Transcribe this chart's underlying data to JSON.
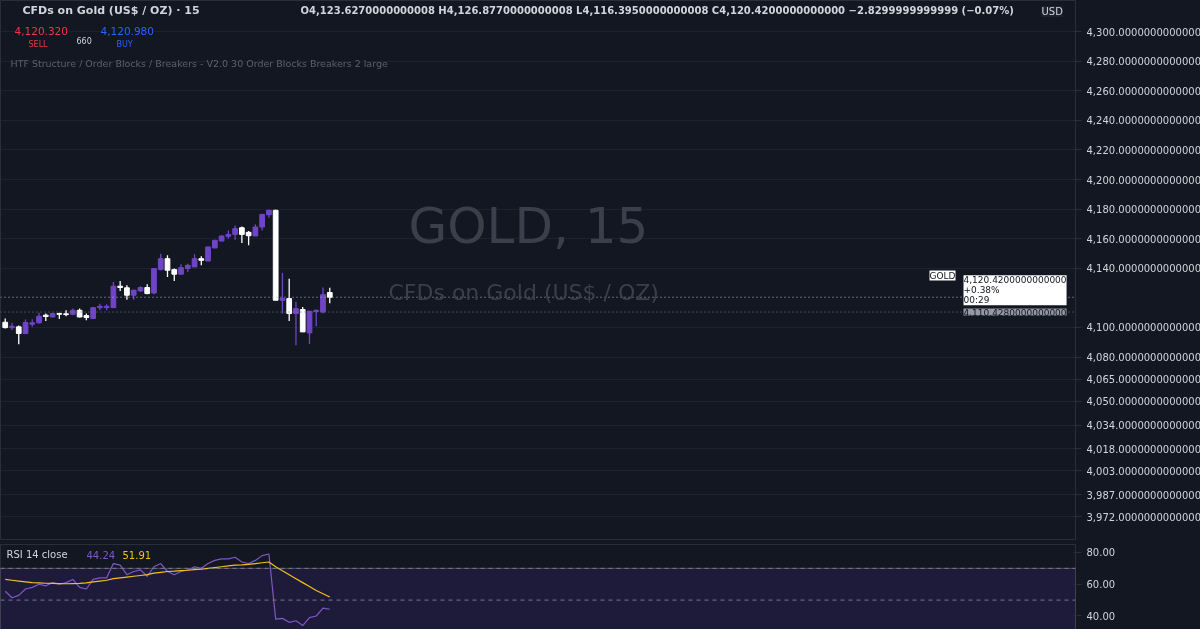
{
  "chart_data": [
    {
      "type": "candlestick",
      "title": "CFDs on Gold (US$ / OZ) · 15",
      "categories": [
        null,
        null,
        null,
        null,
        null,
        null,
        null,
        null,
        null,
        null,
        null,
        null,
        null,
        null,
        null,
        null,
        null,
        null,
        null,
        null,
        null,
        null,
        null,
        null,
        null,
        null,
        null,
        null,
        null,
        null,
        null,
        null,
        null,
        null,
        null,
        null,
        null,
        null,
        null,
        null,
        null,
        null,
        null,
        null,
        null,
        null,
        null,
        null,
        null,
        null,
        null,
        null,
        null,
        null,
        null,
        null,
        null,
        null,
        null,
        null,
        null,
        null,
        null,
        null,
        null,
        null,
        null,
        null,
        null,
        null,
        null,
        null,
        null,
        null,
        null,
        null,
        null,
        null,
        null,
        null,
        null,
        null,
        null,
        null,
        null,
        null,
        null,
        null,
        null,
        null,
        null,
        null,
        null,
        null,
        null,
        null,
        null,
        null,
        null,
        null,
        null,
        null,
        null,
        null,
        null,
        null,
        null,
        null,
        null,
        null,
        null,
        null,
        null,
        null,
        null,
        null,
        null,
        null,
        null,
        null,
        null,
        null,
        null,
        null,
        null,
        null,
        null,
        null,
        null,
        null,
        null,
        null,
        null,
        null,
        null,
        null,
        null,
        null,
        null,
        null,
        null,
        null,
        null,
        null,
        null,
        null,
        null,
        null,
        null,
        null,
        null,
        null,
        null,
        null,
        null,
        null,
        null,
        null,
        null
      ],
      "ohlc": [
        [
          4103.5,
          4106.0,
          4099.3,
          4099.9
        ],
        [
          4099.9,
          4103.1,
          4098.2,
          4100.8
        ],
        [
          4100.4,
          4101.3,
          4088.7,
          4095.9
        ],
        [
          4095.9,
          4105.3,
          4095.9,
          4103.3
        ],
        [
          4102.2,
          4105.6,
          4100.4,
          4103.1
        ],
        [
          4103.1,
          4109.9,
          4102.6,
          4107.6
        ],
        [
          4108.3,
          4109.4,
          4104.4,
          4107.4
        ],
        [
          4107.1,
          4109.9,
          4106.7,
          4109.4
        ],
        [
          4109.4,
          4109.9,
          4105.8,
          4108.9
        ],
        [
          4109.2,
          4111.6,
          4107.6,
          4108.7
        ],
        [
          4108.9,
          4112.8,
          4108.3,
          4111.6
        ],
        [
          4111.6,
          4112.8,
          4106.7,
          4107.1
        ],
        [
          4108.0,
          4109.4,
          4104.9,
          4106.7
        ],
        [
          4106.0,
          4113.9,
          4106.0,
          4113.4
        ],
        [
          4113.4,
          4116.1,
          4111.6,
          4114.3
        ],
        [
          4113.4,
          4115.7,
          4111.6,
          4114.3
        ],
        [
          4113.4,
          4130.8,
          4113.4,
          4127.9
        ],
        [
          4127.9,
          4131.4,
          4124.7,
          4127.0
        ],
        [
          4126.8,
          4128.5,
          4118.8,
          4121.8
        ],
        [
          4121.8,
          4125.6,
          4118.8,
          4125.2
        ],
        [
          4124.7,
          4127.9,
          4124.0,
          4127.0
        ],
        [
          4127.0,
          4129.2,
          4122.4,
          4122.9
        ],
        [
          4123.3,
          4139.8,
          4122.4,
          4139.8
        ],
        [
          4139.1,
          4149.9,
          4138.7,
          4146.5
        ],
        [
          4146.5,
          4148.8,
          4134.1,
          4138.7
        ],
        [
          4139.1,
          4139.8,
          4131.4,
          4136.0
        ],
        [
          4136.0,
          4142.7,
          4136.0,
          4140.4
        ],
        [
          4139.8,
          4143.1,
          4137.5,
          4142.0
        ],
        [
          4140.9,
          4149.5,
          4140.9,
          4146.5
        ],
        [
          4146.5,
          4148.1,
          4142.0,
          4145.4
        ],
        [
          4144.9,
          4154.8,
          4144.9,
          4154.4
        ],
        [
          4153.7,
          4159.3,
          4153.7,
          4158.9
        ],
        [
          4158.4,
          4162.3,
          4158.4,
          4161.8
        ],
        [
          4161.6,
          4165.6,
          4160.0,
          4162.9
        ],
        [
          4162.9,
          4169.0,
          4159.3,
          4166.8
        ],
        [
          4167.4,
          4168.3,
          4157.1,
          4162.9
        ],
        [
          4164.3,
          4165.2,
          4155.5,
          4162.0
        ],
        [
          4161.8,
          4169.7,
          4161.8,
          4167.9
        ],
        [
          4167.9,
          4176.9,
          4165.6,
          4176.4
        ],
        [
          4176.2,
          4179.6,
          4174.2,
          4179.2
        ],
        [
          4179.2,
          4179.6,
          4118.4,
          4118.4
        ],
        [
          4118.4,
          4136.9,
          4109.4,
          4119.5
        ],
        [
          4119.5,
          4133.0,
          4104.4,
          4109.4
        ],
        [
          4109.4,
          4117.3,
          4088.0,
          4112.8
        ],
        [
          4112.1,
          4113.9,
          4097.0,
          4097.0
        ],
        [
          4096.3,
          4111.0,
          4088.7,
          4111.0
        ],
        [
          4110.8,
          4112.1,
          4100.8,
          4111.6
        ],
        [
          4110.5,
          4127.0,
          4109.4,
          4122.2
        ],
        [
          4123.627,
          4126.877,
          4116.395,
          4120.42
        ],
        null,
        null,
        null,
        null,
        null,
        null,
        null,
        null,
        null,
        null,
        null,
        null,
        null,
        null,
        null,
        null,
        null,
        null,
        null,
        null,
        null,
        null,
        null,
        null,
        null,
        null,
        null,
        null,
        null,
        null,
        null,
        null,
        null,
        null,
        null,
        null,
        null,
        null,
        null,
        null,
        null,
        null,
        null,
        null,
        null,
        null,
        null,
        null,
        null,
        null,
        null,
        null,
        null,
        null,
        null,
        null,
        null,
        null,
        null,
        null,
        null,
        null,
        null,
        null,
        null,
        null,
        null,
        null,
        null,
        null,
        null,
        null,
        null,
        null,
        null,
        null,
        null,
        null,
        null,
        null,
        null,
        null,
        null,
        null,
        null,
        null,
        null,
        null,
        null,
        null,
        null,
        null,
        null,
        null,
        null,
        null,
        null,
        null,
        null,
        null,
        null,
        null,
        null,
        null,
        null,
        null,
        null,
        null,
        null,
        null
      ],
      "colors": [
        "#ffffff",
        "#6f45c6",
        "#ffffff",
        "#6f45c6",
        "#6f45c6",
        "#6f45c6",
        "#ffffff",
        "#6f45c6",
        "#ffffff",
        "#ffffff",
        "#6f45c6",
        "#ffffff",
        "#ffffff",
        "#6f45c6",
        "#6f45c6",
        "#6f45c6",
        "#6f45c6",
        "#ffffff",
        "#ffffff",
        "#6f45c6",
        "#6f45c6",
        "#ffffff",
        "#6f45c6",
        "#6f45c6",
        "#ffffff",
        "#ffffff",
        "#6f45c6",
        "#6f45c6",
        "#6f45c6",
        "#ffffff",
        "#6f45c6",
        "#6f45c6",
        "#6f45c6",
        "#6f45c6",
        "#6f45c6",
        "#ffffff",
        "#ffffff",
        "#6f45c6",
        "#6f45c6",
        "#6f45c6",
        "#ffffff",
        "#6f45c6",
        "#ffffff",
        "#6f45c6",
        "#ffffff",
        "#6f45c6",
        "#6f45c6",
        "#6f45c6",
        "#ffffff",
        null,
        null,
        null,
        null,
        null,
        null,
        null,
        null,
        null,
        null,
        null,
        null,
        null,
        null,
        null,
        null,
        null,
        null,
        null,
        null,
        null,
        null,
        null,
        null,
        null,
        null,
        null,
        null,
        null,
        null,
        null,
        null,
        null,
        null,
        null,
        null,
        null,
        null,
        null,
        null,
        null,
        null,
        null,
        null,
        null,
        null,
        null,
        null,
        null,
        null,
        null,
        null,
        null,
        null,
        null,
        null,
        null,
        null,
        null,
        null,
        null,
        null,
        null,
        null,
        null,
        null,
        null,
        null,
        null,
        null,
        null,
        null,
        null,
        null,
        null,
        null,
        null,
        null,
        null,
        null,
        null,
        null,
        null,
        null,
        null,
        null,
        null,
        null,
        null,
        null,
        null,
        null,
        null,
        null,
        null,
        null,
        null,
        null,
        null,
        null,
        null,
        null,
        null,
        null,
        null,
        null,
        null,
        null,
        null,
        null
      ],
      "ylim": [
        3956,
        4321
      ],
      "yticks": [
        {
          "value": 4300,
          "label": "4,300.0000000000000"
        },
        {
          "value": 4280,
          "label": "4,280.0000000000000"
        },
        {
          "value": 4260,
          "label": "4,260.0000000000000"
        },
        {
          "value": 4240,
          "label": "4,240.0000000000000"
        },
        {
          "value": 4220,
          "label": "4,220.0000000000000"
        },
        {
          "value": 4200,
          "label": "4,200.0000000000000"
        },
        {
          "value": 4180,
          "label": "4,180.0000000000000"
        },
        {
          "value": 4160,
          "label": "4,160.0000000000000"
        },
        {
          "value": 4140,
          "label": "4,140.0000000000000"
        },
        {
          "value": 4100,
          "label": "4,100.0000000000000"
        },
        {
          "value": 4080,
          "label": "4,080.0000000000000"
        },
        {
          "value": 4065,
          "label": "4,065.0000000000000"
        },
        {
          "value": 4050,
          "label": "4,050.0000000000000"
        },
        {
          "value": 4034,
          "label": "4,034.0000000000000"
        },
        {
          "value": 4018,
          "label": "4,018.0000000000000"
        },
        {
          "value": 4003,
          "label": "4,003.0000000000000"
        },
        {
          "value": 3987,
          "label": "3,987.0000000000000"
        },
        {
          "value": 3972,
          "label": "3,972.0000000000000"
        }
      ],
      "grid": "y",
      "ref_lines": [
        {
          "axis": "y",
          "value": 4120.42,
          "label": "4,120.4200000000000\n+0.38%\n00:29",
          "color": "#b2b5be",
          "line_style": "dotted"
        },
        {
          "axis": "y",
          "value": 4110.428,
          "label": "4,110.4280000000000",
          "color": "#787b86",
          "line_style": "dotted"
        }
      ],
      "annotations": [
        "O4,123.6270000000008  H4,126.8770000000008  L4,116.3950000000008  C4,120.4200000000000  −2.8299999999999 (−0.07%)",
        "4,120.320",
        "SELL",
        "660",
        "4,120.980",
        "BUY",
        "HTF Structure / Order Blocks / Breakers - V2.0 30 Order Blocks Breakers 2 large",
        "GOLD, 15",
        "CFDs on Gold (US$ / OZ)",
        "USD",
        "GOLD"
      ]
    },
    {
      "type": "line",
      "title": "RSI 14 close",
      "categories": [
        null,
        null,
        null,
        null,
        null,
        null,
        null,
        null,
        null,
        null,
        null,
        null,
        null,
        null,
        null,
        null,
        null,
        null,
        null,
        null,
        null,
        null,
        null,
        null,
        null,
        null,
        null,
        null,
        null,
        null,
        null,
        null,
        null,
        null,
        null,
        null,
        null,
        null,
        null,
        null,
        null,
        null,
        null,
        null,
        null,
        null,
        null,
        null,
        null,
        null,
        null,
        null,
        null,
        null,
        null,
        null,
        null,
        null,
        null,
        null,
        null,
        null,
        null,
        null,
        null,
        null,
        null,
        null,
        null,
        null,
        null,
        null,
        null,
        null,
        null,
        null,
        null,
        null,
        null,
        null,
        null,
        null,
        null,
        null,
        null,
        null,
        null,
        null,
        null,
        null,
        null,
        null,
        null,
        null,
        null,
        null,
        null,
        null,
        null,
        null,
        null,
        null,
        null,
        null,
        null,
        null,
        null,
        null,
        null,
        null,
        null,
        null,
        null,
        null,
        null,
        null,
        null,
        null,
        null,
        null,
        null,
        null,
        null,
        null,
        null,
        null,
        null,
        null,
        null,
        null,
        null,
        null,
        null,
        null,
        null,
        null,
        null,
        null,
        null,
        null,
        null,
        null,
        null,
        null,
        null,
        null,
        null,
        null,
        null,
        null,
        null,
        null,
        null,
        null,
        null,
        null,
        null,
        null,
        null
      ],
      "series": [
        {
          "color": "#7e57c2",
          "values": [
            55.6,
            51.5,
            53,
            57,
            58,
            60,
            59,
            61,
            60,
            61,
            63,
            58,
            57,
            63,
            64,
            64,
            73,
            72,
            66,
            68,
            69,
            65,
            71,
            73,
            68,
            66,
            68,
            69,
            71,
            70,
            73,
            75,
            76,
            76,
            77,
            74,
            73,
            75,
            78,
            79,
            38,
            38.5,
            36,
            37,
            34,
            39,
            40,
            45,
            44.24,
            null,
            null,
            null,
            null,
            null,
            null,
            null,
            null,
            null,
            null,
            null,
            null,
            null,
            null,
            null,
            null,
            null,
            null,
            null,
            null,
            null,
            null,
            null,
            null,
            null,
            null,
            null,
            null,
            null,
            null,
            null,
            null,
            null,
            null,
            null,
            null,
            null,
            null,
            null,
            null,
            null,
            null,
            null,
            null,
            null,
            null,
            null,
            null,
            null,
            null,
            null,
            null,
            null,
            null,
            null,
            null,
            null,
            null,
            null,
            null,
            null,
            null,
            null,
            null,
            null,
            null,
            null,
            null,
            null,
            null,
            null,
            null,
            null,
            null,
            null,
            null,
            null,
            null,
            null,
            null,
            null,
            null,
            null,
            null,
            null,
            null,
            null,
            null,
            null,
            null,
            null,
            null,
            null,
            null,
            null,
            null,
            null,
            null,
            null,
            null,
            null,
            null,
            null,
            null,
            null,
            null,
            null,
            null,
            null,
            null
          ]
        },
        {
          "color": "#f0c020",
          "values": [
            63,
            62.5,
            62,
            61.5,
            61,
            60.8,
            60.6,
            60.5,
            60.4,
            60.3,
            60.4,
            60.5,
            60.8,
            61.5,
            62,
            62.5,
            63.5,
            64,
            64.5,
            65,
            65.5,
            66,
            67,
            67.5,
            68,
            68.2,
            68.5,
            68.8,
            69.2,
            69.5,
            70,
            70.5,
            71,
            71.5,
            72,
            72.2,
            72.5,
            73,
            73.5,
            74,
            71,
            68.5,
            66,
            63.5,
            61,
            58.5,
            56,
            54,
            51.91,
            null,
            null,
            null,
            null,
            null,
            null,
            null,
            null,
            null,
            null,
            null,
            null,
            null,
            null,
            null,
            null,
            null,
            null,
            null,
            null,
            null,
            null,
            null,
            null,
            null,
            null,
            null,
            null,
            null,
            null,
            null,
            null,
            null,
            null,
            null,
            null,
            null,
            null,
            null,
            null,
            null,
            null,
            null,
            null,
            null,
            null,
            null,
            null,
            null,
            null,
            null,
            null,
            null,
            null,
            null,
            null,
            null,
            null,
            null,
            null,
            null,
            null,
            null,
            null,
            null,
            null,
            null,
            null,
            null,
            null,
            null,
            null,
            null,
            null,
            null,
            null,
            null,
            null,
            null,
            null,
            null,
            null,
            null,
            null,
            null,
            null,
            null,
            null,
            null,
            null,
            null,
            null,
            null,
            null,
            null,
            null,
            null,
            null,
            null,
            null,
            null,
            null,
            null,
            null,
            null,
            null,
            null,
            null,
            null,
            null
          ]
        }
      ],
      "value_labels": [
        "44.24",
        "51.91"
      ],
      "ylim": [
        31.5,
        85
      ],
      "yticks": [
        {
          "value": 80,
          "label": "80.00"
        },
        {
          "value": 60,
          "label": "60.00"
        },
        {
          "value": 40,
          "label": "40.00"
        }
      ],
      "ref_lines": [
        {
          "axis": "y",
          "value": 70,
          "color": "#787b86",
          "line_style": "dashed"
        },
        {
          "axis": "y",
          "value": 50,
          "color": "#787b86",
          "line_style": "dashed"
        }
      ],
      "bands": [
        {
          "axis": "y",
          "from": 31.5,
          "to": 70,
          "color": "#1e1b3a"
        }
      ],
      "line_style": "solid",
      "marker": "none"
    }
  ]
}
